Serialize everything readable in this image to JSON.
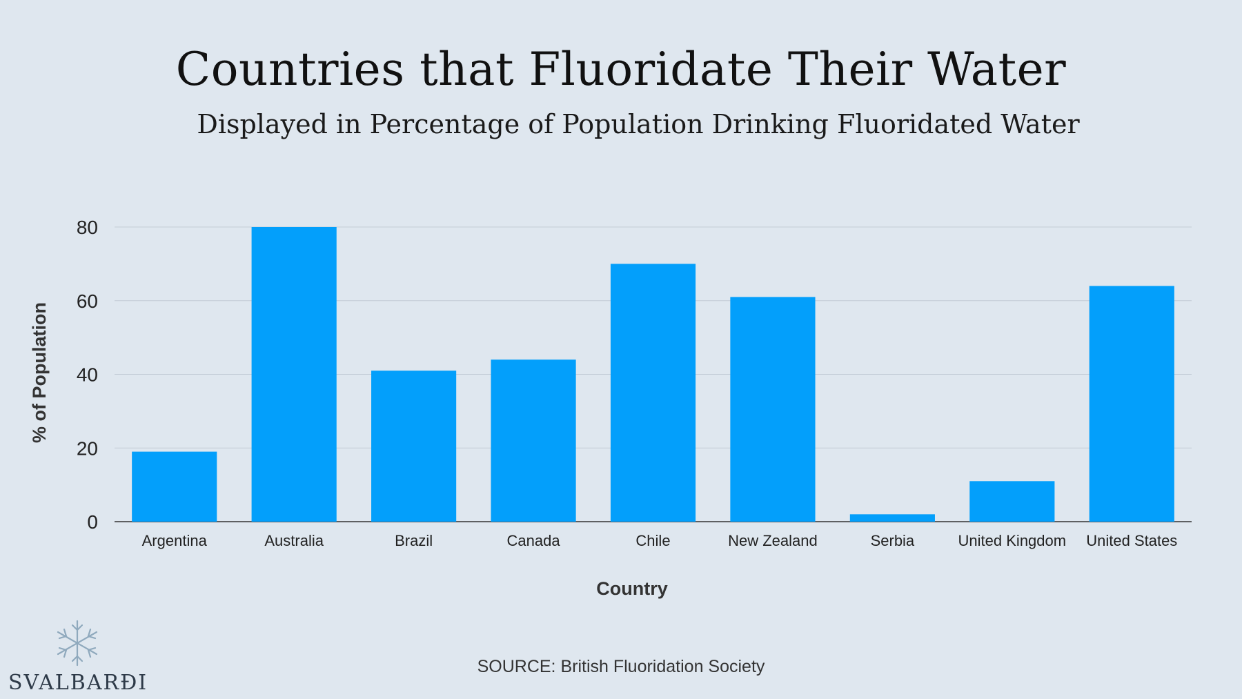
{
  "title": "Countries that Fluoridate Their Water",
  "subtitle": "Displayed in Percentage of Population Drinking Fluoridated Water",
  "source": "SOURCE: British Fluoridation Society",
  "logo": {
    "text": "SVALBARÐI",
    "icon": "snowflake-icon"
  },
  "colors": {
    "bar": "#039ffb",
    "background": "#dfe7ef",
    "grid": "#c3ccd6"
  },
  "chart_data": {
    "type": "bar",
    "categories": [
      "Argentina",
      "Australia",
      "Brazil",
      "Canada",
      "Chile",
      "New Zealand",
      "Serbia",
      "United Kingdom",
      "United States"
    ],
    "values": [
      19,
      80,
      41,
      44,
      70,
      61,
      2,
      11,
      64
    ],
    "xlabel": "Country",
    "ylabel": "% of Population",
    "ylim": [
      0,
      80
    ],
    "yticks": [
      0,
      20,
      40,
      60,
      80
    ],
    "grid": true,
    "legend": "none"
  }
}
